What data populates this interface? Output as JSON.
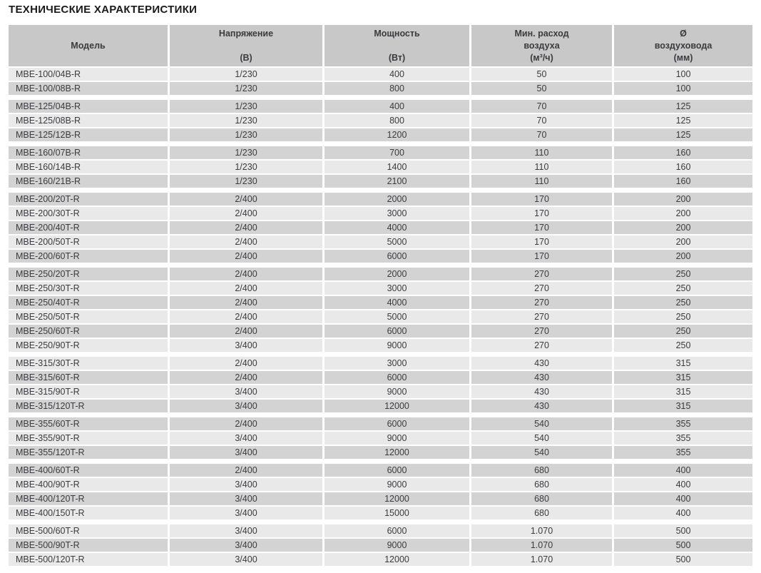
{
  "page_title": "ТЕХНИЧЕСКИЕ ХАРАКТЕРИСТИКИ",
  "colors": {
    "header_bg": "#c8c8c8",
    "row_dark": "#d3d3d3",
    "row_light": "#e9e9e9",
    "separator": "#ffffff",
    "text": "#3b3b3f",
    "title_color": "#1a1a1a"
  },
  "table": {
    "columns": [
      {
        "id": "model",
        "line1": "Модель",
        "line2": "",
        "line3": ""
      },
      {
        "id": "voltage",
        "line1": "Напряжение",
        "line2": "",
        "line3": "(В)"
      },
      {
        "id": "power",
        "line1": "Мощность",
        "line2": "",
        "line3": "(Вт)"
      },
      {
        "id": "airflow",
        "line1": "Мин. расход",
        "line2": "воздуха",
        "line3": "(м³/ч)"
      },
      {
        "id": "diameter",
        "line1": "Ø",
        "line2": "воздуховода",
        "line3": "(мм)"
      }
    ],
    "groups": [
      [
        {
          "model": "MBE-100/04B-R",
          "voltage": "1/230",
          "power": "400",
          "airflow": "50",
          "diameter": "100"
        },
        {
          "model": "MBE-100/08B-R",
          "voltage": "1/230",
          "power": "800",
          "airflow": "50",
          "diameter": "100"
        }
      ],
      [
        {
          "model": "MBE-125/04B-R",
          "voltage": "1/230",
          "power": "400",
          "airflow": "70",
          "diameter": "125"
        },
        {
          "model": "MBE-125/08B-R",
          "voltage": "1/230",
          "power": "800",
          "airflow": "70",
          "diameter": "125"
        },
        {
          "model": "MBE-125/12B-R",
          "voltage": "1/230",
          "power": "1200",
          "airflow": "70",
          "diameter": "125"
        }
      ],
      [
        {
          "model": "MBE-160/07B-R",
          "voltage": "1/230",
          "power": "700",
          "airflow": "110",
          "diameter": "160"
        },
        {
          "model": "MBE-160/14B-R",
          "voltage": "1/230",
          "power": "1400",
          "airflow": "110",
          "diameter": "160"
        },
        {
          "model": "MBE-160/21B-R",
          "voltage": "1/230",
          "power": "2100",
          "airflow": "110",
          "diameter": "160"
        }
      ],
      [
        {
          "model": "MBE-200/20T-R",
          "voltage": "2/400",
          "power": "2000",
          "airflow": "170",
          "diameter": "200"
        },
        {
          "model": "MBE-200/30T-R",
          "voltage": "2/400",
          "power": "3000",
          "airflow": "170",
          "diameter": "200"
        },
        {
          "model": "MBE-200/40T-R",
          "voltage": "2/400",
          "power": "4000",
          "airflow": "170",
          "diameter": "200"
        },
        {
          "model": "MBE-200/50T-R",
          "voltage": "2/400",
          "power": "5000",
          "airflow": "170",
          "diameter": "200"
        },
        {
          "model": "MBE-200/60T-R",
          "voltage": "2/400",
          "power": "6000",
          "airflow": "170",
          "diameter": "200"
        }
      ],
      [
        {
          "model": "MBE-250/20T-R",
          "voltage": "2/400",
          "power": "2000",
          "airflow": "270",
          "diameter": "250"
        },
        {
          "model": "MBE-250/30T-R",
          "voltage": "2/400",
          "power": "3000",
          "airflow": "270",
          "diameter": "250"
        },
        {
          "model": "MBE-250/40T-R",
          "voltage": "2/400",
          "power": "4000",
          "airflow": "270",
          "diameter": "250"
        },
        {
          "model": "MBE-250/50T-R",
          "voltage": "2/400",
          "power": "5000",
          "airflow": "270",
          "diameter": "250"
        },
        {
          "model": "MBE-250/60T-R",
          "voltage": "2/400",
          "power": "6000",
          "airflow": "270",
          "diameter": "250"
        },
        {
          "model": "MBE-250/90T-R",
          "voltage": "3/400",
          "power": "9000",
          "airflow": "270",
          "diameter": "250"
        }
      ],
      [
        {
          "model": "MBE-315/30T-R",
          "voltage": "2/400",
          "power": "3000",
          "airflow": "430",
          "diameter": "315"
        },
        {
          "model": "MBE-315/60T-R",
          "voltage": "2/400",
          "power": "6000",
          "airflow": "430",
          "diameter": "315"
        },
        {
          "model": "MBE-315/90T-R",
          "voltage": "3/400",
          "power": "9000",
          "airflow": "430",
          "diameter": "315"
        },
        {
          "model": "MBE-315/120T-R",
          "voltage": "3/400",
          "power": "12000",
          "airflow": "430",
          "diameter": "315"
        }
      ],
      [
        {
          "model": "MBE-355/60T-R",
          "voltage": "2/400",
          "power": "6000",
          "airflow": "540",
          "diameter": "355"
        },
        {
          "model": "MBE-355/90T-R",
          "voltage": "3/400",
          "power": "9000",
          "airflow": "540",
          "diameter": "355"
        },
        {
          "model": "MBE-355/120T-R",
          "voltage": "3/400",
          "power": "12000",
          "airflow": "540",
          "diameter": "355"
        }
      ],
      [
        {
          "model": "MBE-400/60T-R",
          "voltage": "2/400",
          "power": "6000",
          "airflow": "680",
          "diameter": "400"
        },
        {
          "model": "MBE-400/90T-R",
          "voltage": "3/400",
          "power": "9000",
          "airflow": "680",
          "diameter": "400"
        },
        {
          "model": "MBE-400/120T-R",
          "voltage": "3/400",
          "power": "12000",
          "airflow": "680",
          "diameter": "400"
        },
        {
          "model": "MBE-400/150T-R",
          "voltage": "3/400",
          "power": "15000",
          "airflow": "680",
          "diameter": "400"
        }
      ],
      [
        {
          "model": "MBE-500/60T-R",
          "voltage": "3/400",
          "power": "6000",
          "airflow": "1.070",
          "diameter": "500"
        },
        {
          "model": "MBE-500/90T-R",
          "voltage": "3/400",
          "power": "9000",
          "airflow": "1.070",
          "diameter": "500"
        },
        {
          "model": "MBE-500/120T-R",
          "voltage": "3/400",
          "power": "12000",
          "airflow": "1.070",
          "diameter": "500"
        }
      ]
    ]
  }
}
